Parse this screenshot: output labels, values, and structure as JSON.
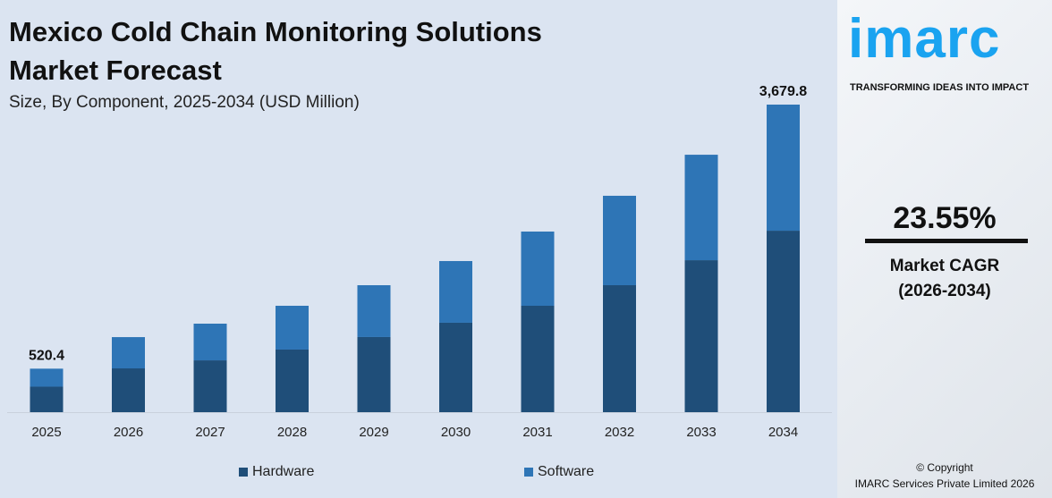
{
  "title_line1": "Mexico Cold Chain Monitoring Solutions",
  "title_line2": "Market Forecast",
  "subtitle": "Size, By Component, 2025-2034 (USD Million)",
  "chart_data": {
    "type": "bar",
    "stacked": true,
    "categories": [
      "2025",
      "2026",
      "2027",
      "2028",
      "2029",
      "2030",
      "2031",
      "2032",
      "2033",
      "2034"
    ],
    "series": [
      {
        "name": "Hardware",
        "color": "#1f4e79",
        "values": [
          305,
          524,
          620,
          749,
          899,
          1070,
          1273,
          1519,
          1818,
          2171
        ]
      },
      {
        "name": "Software",
        "color": "#2e75b6",
        "values": [
          215.4,
          374,
          439,
          524,
          620,
          738,
          888,
          1070,
          1262,
          1508.8
        ]
      }
    ],
    "data_labels": {
      "2025": "520.4",
      "2034": "3,679.8"
    },
    "ylim": [
      0,
      3679.8
    ],
    "grid": false,
    "legend": "bottom"
  },
  "brand": {
    "logo": "imarc",
    "tagline": "TRANSFORMING IDEAS INTO IMPACT",
    "color": "#1aa3f0"
  },
  "cagr": {
    "value": "23.55%",
    "label1": "Market CAGR",
    "label2": "(2026-2034)"
  },
  "copyright": {
    "line1": "© Copyright",
    "line2": "IMARC Services Private Limited 2026"
  }
}
